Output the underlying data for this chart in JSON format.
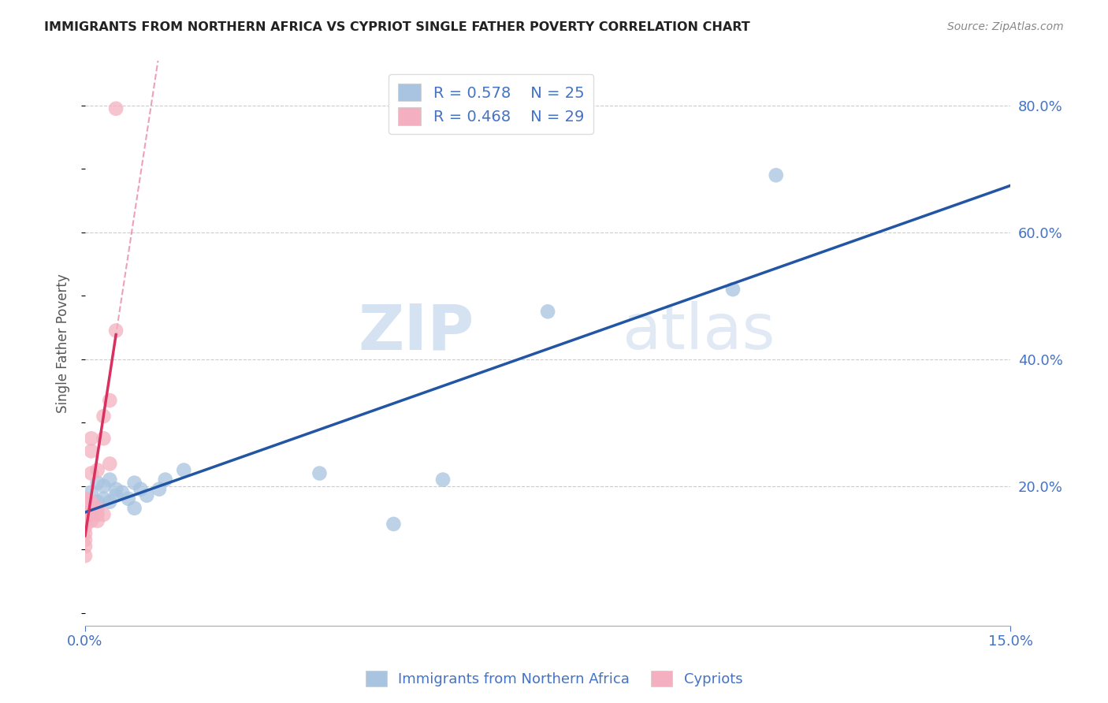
{
  "title": "IMMIGRANTS FROM NORTHERN AFRICA VS CYPRIOT SINGLE FATHER POVERTY CORRELATION CHART",
  "source": "Source: ZipAtlas.com",
  "xlabel_blue": "Immigrants from Northern Africa",
  "xlabel_pink": "Cypriots",
  "ylabel": "Single Father Poverty",
  "xlim": [
    0.0,
    0.15
  ],
  "ylim": [
    -0.02,
    0.87
  ],
  "blue_R": "0.578",
  "blue_N": "25",
  "pink_R": "0.468",
  "pink_N": "29",
  "blue_color": "#a8c4e0",
  "blue_line_color": "#2255a4",
  "pink_color": "#f4b0c0",
  "pink_line_color": "#d93060",
  "legend_text_color": "#4472c4",
  "watermark_zip": "ZIP",
  "watermark_atlas": "atlas",
  "blue_x": [
    0.001,
    0.001,
    0.002,
    0.002,
    0.003,
    0.003,
    0.004,
    0.004,
    0.005,
    0.005,
    0.006,
    0.007,
    0.008,
    0.008,
    0.009,
    0.01,
    0.012,
    0.013,
    0.016,
    0.038,
    0.05,
    0.058,
    0.075,
    0.105,
    0.112
  ],
  "blue_y": [
    0.165,
    0.19,
    0.175,
    0.205,
    0.18,
    0.2,
    0.175,
    0.21,
    0.185,
    0.195,
    0.19,
    0.18,
    0.165,
    0.205,
    0.195,
    0.185,
    0.195,
    0.21,
    0.225,
    0.22,
    0.14,
    0.21,
    0.475,
    0.51,
    0.69
  ],
  "pink_x": [
    0.0,
    0.0,
    0.0,
    0.0,
    0.0,
    0.0,
    0.0,
    0.0,
    0.0,
    0.0,
    0.0,
    0.001,
    0.001,
    0.001,
    0.001,
    0.001,
    0.001,
    0.001,
    0.002,
    0.002,
    0.002,
    0.002,
    0.003,
    0.003,
    0.003,
    0.004,
    0.004,
    0.005,
    0.005
  ],
  "pink_y": [
    0.09,
    0.105,
    0.115,
    0.125,
    0.135,
    0.145,
    0.155,
    0.162,
    0.168,
    0.175,
    0.18,
    0.145,
    0.155,
    0.165,
    0.175,
    0.22,
    0.255,
    0.275,
    0.145,
    0.155,
    0.165,
    0.225,
    0.155,
    0.275,
    0.31,
    0.235,
    0.335,
    0.445,
    0.795
  ]
}
